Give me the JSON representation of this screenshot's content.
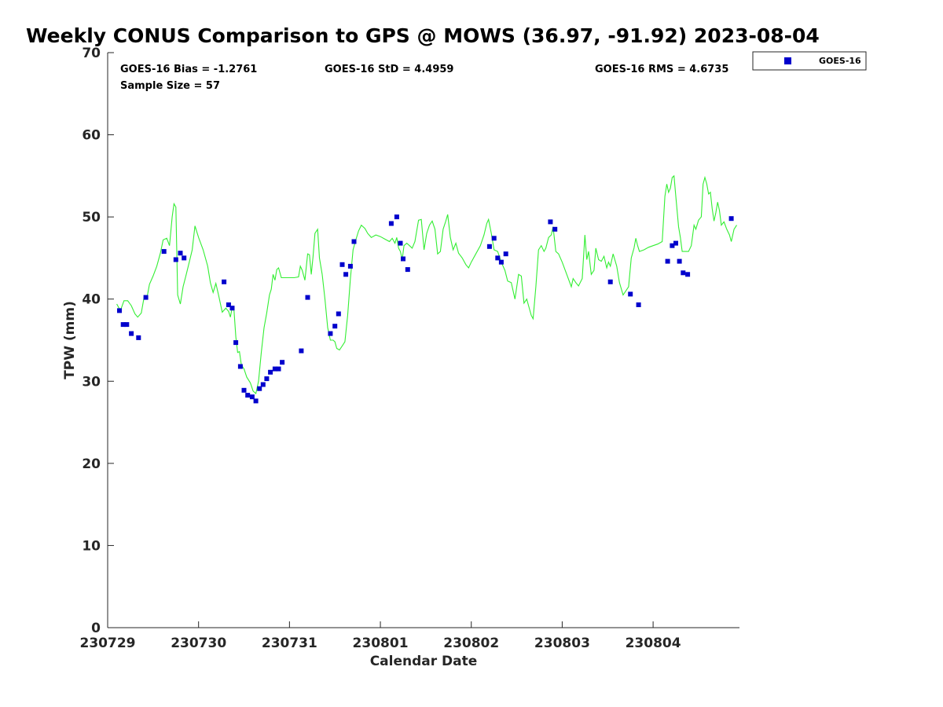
{
  "chart_data": {
    "type": "scatter",
    "title": "Weekly CONUS Comparison to GPS @ MOWS (36.97, -91.92) 2023-08-04",
    "xlabel": "Calendar Date",
    "ylabel": "TPW (mm)",
    "xlim": [
      0,
      6.95
    ],
    "ylim": [
      0,
      70
    ],
    "x_ticks": [
      0,
      1,
      2,
      3,
      4,
      5,
      6
    ],
    "x_tick_labels": [
      "230729",
      "230730",
      "230731",
      "230801",
      "230802",
      "230803",
      "230804"
    ],
    "y_ticks": [
      0,
      10,
      20,
      30,
      40,
      50,
      60,
      70
    ],
    "y_tick_labels": [
      "0",
      "10",
      "20",
      "30",
      "40",
      "50",
      "60",
      "70"
    ],
    "grid": false,
    "legend": {
      "position": "outside-top-right",
      "entries": [
        "GOES-16"
      ]
    },
    "stats": {
      "bias": "GOES-16 Bias = -1.2761",
      "std": "GOES-16 StD = 4.4959",
      "rms": "GOES-16 RMS = 4.6735",
      "sample": "Sample Size = 57"
    },
    "series": [
      {
        "name": "GOES-16",
        "kind": "scatter",
        "color": "#0000cc",
        "points": [
          [
            0.13,
            38.6
          ],
          [
            0.17,
            36.9
          ],
          [
            0.21,
            36.9
          ],
          [
            0.26,
            35.8
          ],
          [
            0.34,
            35.3
          ],
          [
            0.42,
            40.2
          ],
          [
            0.62,
            45.8
          ],
          [
            0.75,
            44.8
          ],
          [
            0.8,
            45.6
          ],
          [
            0.84,
            45.0
          ],
          [
            1.28,
            42.1
          ],
          [
            1.33,
            39.3
          ],
          [
            1.37,
            38.9
          ],
          [
            1.41,
            34.7
          ],
          [
            1.46,
            31.8
          ],
          [
            1.5,
            28.9
          ],
          [
            1.54,
            28.3
          ],
          [
            1.59,
            28.1
          ],
          [
            1.63,
            27.6
          ],
          [
            1.67,
            29.1
          ],
          [
            1.71,
            29.6
          ],
          [
            1.75,
            30.3
          ],
          [
            1.79,
            31.1
          ],
          [
            1.84,
            31.5
          ],
          [
            1.88,
            31.5
          ],
          [
            1.92,
            32.3
          ],
          [
            2.13,
            33.7
          ],
          [
            2.2,
            40.2
          ],
          [
            2.45,
            35.8
          ],
          [
            2.5,
            36.7
          ],
          [
            2.54,
            38.2
          ],
          [
            2.58,
            44.2
          ],
          [
            2.62,
            43.0
          ],
          [
            2.67,
            44.0
          ],
          [
            2.71,
            47.0
          ],
          [
            3.12,
            49.2
          ],
          [
            3.18,
            50.0
          ],
          [
            3.22,
            46.8
          ],
          [
            3.25,
            44.9
          ],
          [
            3.3,
            43.6
          ],
          [
            4.2,
            46.4
          ],
          [
            4.25,
            47.4
          ],
          [
            4.29,
            45.0
          ],
          [
            4.33,
            44.5
          ],
          [
            4.38,
            45.5
          ],
          [
            4.87,
            49.4
          ],
          [
            4.92,
            48.5
          ],
          [
            5.53,
            42.1
          ],
          [
            5.75,
            40.6
          ],
          [
            5.84,
            39.3
          ],
          [
            6.16,
            44.6
          ],
          [
            6.21,
            46.5
          ],
          [
            6.25,
            46.8
          ],
          [
            6.29,
            44.6
          ],
          [
            6.33,
            43.2
          ],
          [
            6.38,
            43.0
          ],
          [
            6.86,
            49.8
          ]
        ]
      },
      {
        "name": "",
        "kind": "line",
        "color": "#33ee33",
        "points": [
          [
            0.1,
            39.4
          ],
          [
            0.14,
            38.6
          ],
          [
            0.18,
            39.8
          ],
          [
            0.22,
            39.8
          ],
          [
            0.26,
            39.2
          ],
          [
            0.3,
            38.2
          ],
          [
            0.33,
            37.8
          ],
          [
            0.37,
            38.3
          ],
          [
            0.4,
            40.2
          ],
          [
            0.43,
            40.0
          ],
          [
            0.46,
            41.8
          ],
          [
            0.5,
            42.8
          ],
          [
            0.54,
            44.0
          ],
          [
            0.58,
            45.6
          ],
          [
            0.61,
            47.2
          ],
          [
            0.65,
            47.4
          ],
          [
            0.68,
            46.5
          ],
          [
            0.71,
            50.0
          ],
          [
            0.73,
            51.6
          ],
          [
            0.75,
            51.2
          ],
          [
            0.77,
            40.5
          ],
          [
            0.8,
            39.4
          ],
          [
            0.83,
            41.5
          ],
          [
            0.86,
            42.8
          ],
          [
            0.9,
            44.6
          ],
          [
            0.93,
            46.0
          ],
          [
            0.96,
            48.9
          ],
          [
            1.0,
            47.5
          ],
          [
            1.05,
            46.0
          ],
          [
            1.1,
            44.0
          ],
          [
            1.13,
            42.0
          ],
          [
            1.16,
            40.8
          ],
          [
            1.19,
            41.9
          ],
          [
            1.22,
            40.5
          ],
          [
            1.26,
            38.4
          ],
          [
            1.3,
            38.9
          ],
          [
            1.33,
            38.5
          ],
          [
            1.35,
            37.8
          ],
          [
            1.37,
            39.0
          ],
          [
            1.39,
            38.6
          ],
          [
            1.41,
            35.4
          ],
          [
            1.43,
            33.5
          ],
          [
            1.45,
            33.6
          ],
          [
            1.47,
            32.0
          ],
          [
            1.5,
            31.5
          ],
          [
            1.53,
            30.5
          ],
          [
            1.57,
            29.8
          ],
          [
            1.6,
            28.8
          ],
          [
            1.63,
            28.5
          ],
          [
            1.66,
            30.0
          ],
          [
            1.69,
            33.5
          ],
          [
            1.72,
            36.5
          ],
          [
            1.75,
            38.3
          ],
          [
            1.78,
            40.5
          ],
          [
            1.8,
            41.2
          ],
          [
            1.82,
            43.0
          ],
          [
            1.84,
            42.3
          ],
          [
            1.86,
            43.6
          ],
          [
            1.88,
            43.8
          ],
          [
            1.91,
            42.6
          ],
          [
            1.95,
            42.6
          ],
          [
            2.0,
            42.6
          ],
          [
            2.05,
            42.6
          ],
          [
            2.1,
            42.7
          ],
          [
            2.12,
            44.0
          ],
          [
            2.14,
            43.5
          ],
          [
            2.17,
            42.3
          ],
          [
            2.2,
            45.5
          ],
          [
            2.22,
            45.4
          ],
          [
            2.24,
            43.0
          ],
          [
            2.26,
            45.2
          ],
          [
            2.28,
            48.0
          ],
          [
            2.31,
            48.5
          ],
          [
            2.33,
            45.0
          ],
          [
            2.36,
            43.0
          ],
          [
            2.39,
            40.0
          ],
          [
            2.42,
            36.5
          ],
          [
            2.45,
            35.0
          ],
          [
            2.48,
            35.0
          ],
          [
            2.5,
            34.8
          ],
          [
            2.52,
            34.0
          ],
          [
            2.55,
            33.8
          ],
          [
            2.58,
            34.3
          ],
          [
            2.61,
            34.8
          ],
          [
            2.64,
            38.0
          ],
          [
            2.67,
            42.5
          ],
          [
            2.7,
            46.0
          ],
          [
            2.73,
            47.2
          ],
          [
            2.76,
            48.3
          ],
          [
            2.79,
            49.0
          ],
          [
            2.83,
            48.6
          ],
          [
            2.86,
            48.0
          ],
          [
            2.9,
            47.5
          ],
          [
            2.95,
            47.8
          ],
          [
            3.0,
            47.6
          ],
          [
            3.05,
            47.3
          ],
          [
            3.1,
            47.0
          ],
          [
            3.13,
            47.4
          ],
          [
            3.16,
            46.8
          ],
          [
            3.18,
            47.5
          ],
          [
            3.2,
            46.2
          ],
          [
            3.22,
            45.8
          ],
          [
            3.24,
            44.8
          ],
          [
            3.26,
            46.5
          ],
          [
            3.29,
            46.8
          ],
          [
            3.32,
            46.5
          ],
          [
            3.35,
            46.2
          ],
          [
            3.38,
            47.0
          ],
          [
            3.42,
            49.6
          ],
          [
            3.45,
            49.7
          ],
          [
            3.48,
            46.0
          ],
          [
            3.51,
            48.0
          ],
          [
            3.54,
            49.0
          ],
          [
            3.57,
            49.5
          ],
          [
            3.6,
            48.5
          ],
          [
            3.63,
            45.5
          ],
          [
            3.66,
            45.8
          ],
          [
            3.69,
            48.5
          ],
          [
            3.72,
            49.5
          ],
          [
            3.74,
            50.3
          ],
          [
            3.77,
            47.5
          ],
          [
            3.8,
            46.0
          ],
          [
            3.83,
            46.8
          ],
          [
            3.86,
            45.6
          ],
          [
            3.9,
            45.0
          ],
          [
            3.94,
            44.2
          ],
          [
            3.97,
            43.8
          ],
          [
            4.0,
            44.5
          ],
          [
            4.05,
            45.5
          ],
          [
            4.1,
            46.5
          ],
          [
            4.14,
            47.8
          ],
          [
            4.17,
            49.2
          ],
          [
            4.19,
            49.7
          ],
          [
            4.22,
            48.0
          ],
          [
            4.25,
            46.0
          ],
          [
            4.29,
            45.8
          ],
          [
            4.33,
            44.5
          ],
          [
            4.37,
            43.5
          ],
          [
            4.4,
            42.2
          ],
          [
            4.44,
            42.0
          ],
          [
            4.48,
            40.0
          ],
          [
            4.52,
            43.0
          ],
          [
            4.55,
            42.8
          ],
          [
            4.58,
            39.5
          ],
          [
            4.61,
            40.0
          ],
          [
            4.63,
            39.2
          ],
          [
            4.66,
            38.0
          ],
          [
            4.68,
            37.6
          ],
          [
            4.71,
            41.5
          ],
          [
            4.74,
            46.0
          ],
          [
            4.77,
            46.5
          ],
          [
            4.8,
            45.8
          ],
          [
            4.82,
            46.2
          ],
          [
            4.85,
            47.5
          ],
          [
            4.88,
            47.8
          ],
          [
            4.9,
            48.8
          ],
          [
            4.93,
            45.8
          ],
          [
            4.96,
            45.5
          ],
          [
            5.0,
            44.5
          ],
          [
            5.05,
            43.0
          ],
          [
            5.1,
            41.5
          ],
          [
            5.12,
            42.5
          ],
          [
            5.15,
            42.0
          ],
          [
            5.18,
            41.6
          ],
          [
            5.22,
            42.5
          ],
          [
            5.25,
            47.8
          ],
          [
            5.27,
            44.8
          ],
          [
            5.29,
            45.8
          ],
          [
            5.32,
            43.0
          ],
          [
            5.35,
            43.5
          ],
          [
            5.37,
            46.2
          ],
          [
            5.4,
            44.8
          ],
          [
            5.43,
            44.6
          ],
          [
            5.46,
            45.2
          ],
          [
            5.49,
            43.8
          ],
          [
            5.51,
            44.5
          ],
          [
            5.53,
            44.0
          ],
          [
            5.56,
            45.5
          ],
          [
            5.6,
            44.0
          ],
          [
            5.63,
            42.0
          ],
          [
            5.67,
            40.5
          ],
          [
            5.7,
            41.0
          ],
          [
            5.73,
            41.5
          ],
          [
            5.76,
            45.0
          ],
          [
            5.79,
            46.2
          ],
          [
            5.81,
            47.4
          ],
          [
            5.83,
            46.5
          ],
          [
            5.85,
            45.8
          ],
          [
            5.9,
            46.0
          ],
          [
            5.95,
            46.3
          ],
          [
            6.0,
            46.5
          ],
          [
            6.05,
            46.7
          ],
          [
            6.1,
            47.0
          ],
          [
            6.13,
            52.5
          ],
          [
            6.15,
            54.0
          ],
          [
            6.17,
            53.0
          ],
          [
            6.19,
            53.5
          ],
          [
            6.21,
            54.8
          ],
          [
            6.23,
            55.0
          ],
          [
            6.25,
            52.5
          ],
          [
            6.28,
            48.8
          ],
          [
            6.3,
            47.5
          ],
          [
            6.32,
            45.8
          ],
          [
            6.35,
            45.8
          ],
          [
            6.39,
            45.8
          ],
          [
            6.42,
            46.5
          ],
          [
            6.45,
            49.0
          ],
          [
            6.47,
            48.5
          ],
          [
            6.5,
            49.6
          ],
          [
            6.53,
            50.0
          ],
          [
            6.55,
            54.0
          ],
          [
            6.57,
            54.8
          ],
          [
            6.59,
            54.0
          ],
          [
            6.61,
            52.8
          ],
          [
            6.63,
            53.0
          ],
          [
            6.65,
            51.0
          ],
          [
            6.67,
            49.5
          ],
          [
            6.69,
            50.5
          ],
          [
            6.71,
            51.8
          ],
          [
            6.73,
            50.8
          ],
          [
            6.75,
            49.0
          ],
          [
            6.78,
            49.4
          ],
          [
            6.81,
            48.5
          ],
          [
            6.84,
            47.8
          ],
          [
            6.86,
            47.0
          ],
          [
            6.89,
            48.5
          ],
          [
            6.92,
            49.0
          ]
        ]
      }
    ]
  }
}
